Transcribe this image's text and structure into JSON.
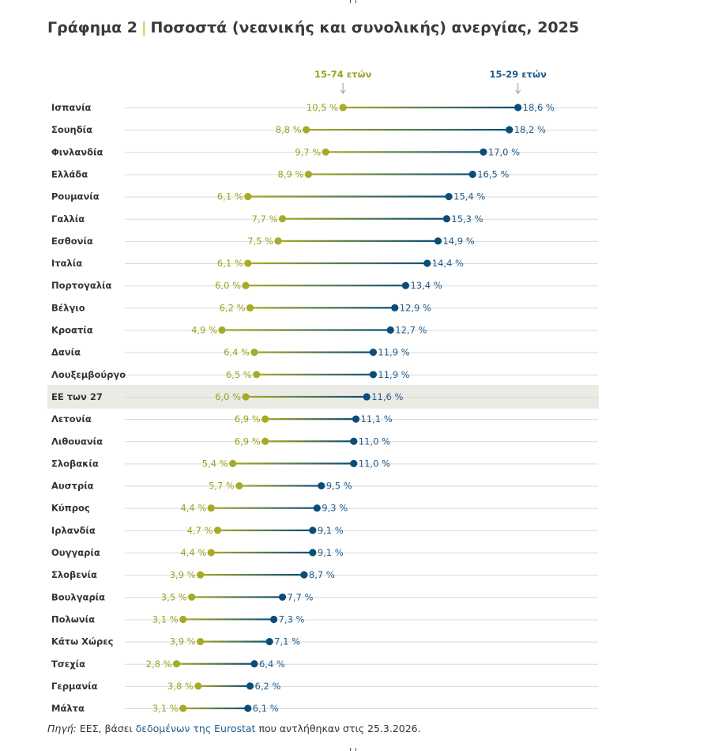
{
  "title": {
    "label": "Γράφημα 2",
    "separator": "|",
    "text": "Ποσοστά (νεανικής και συνολικής) ανεργίας, 2025"
  },
  "colors": {
    "total": "#a5ab25",
    "youth": "#0b4d79",
    "label_total": "#9aa320",
    "label_youth": "#1f5b8a",
    "highlight_bg": "#ebebe6",
    "row_line": "#d9d9d9"
  },
  "chart_data": {
    "type": "dumbbell",
    "title": "Ποσοστά (νεανικής και συνολικής) ανεργίας, 2025",
    "xlim": [
      0,
      20
    ],
    "series": [
      {
        "name": "15-74 ετών",
        "values": [
          10.5,
          8.8,
          9.7,
          8.9,
          6.1,
          7.7,
          7.5,
          6.1,
          6.0,
          6.2,
          4.9,
          6.4,
          6.5,
          6.0,
          6.9,
          6.9,
          5.4,
          5.7,
          4.4,
          4.7,
          4.4,
          3.9,
          3.5,
          3.1,
          3.9,
          2.8,
          3.8,
          3.1
        ]
      },
      {
        "name": "15-29 ετών",
        "values": [
          18.6,
          18.2,
          17.0,
          16.5,
          15.4,
          15.3,
          14.9,
          14.4,
          13.4,
          12.9,
          12.7,
          11.9,
          11.9,
          11.6,
          11.1,
          11.0,
          11.0,
          9.5,
          9.3,
          9.1,
          9.1,
          8.7,
          7.7,
          7.3,
          7.1,
          6.4,
          6.2,
          6.1
        ]
      }
    ],
    "categories": [
      "Ισπανία",
      "Σουηδία",
      "Φινλανδία",
      "Ελλάδα",
      "Ρουμανία",
      "Γαλλία",
      "Εσθονία",
      "Ιταλία",
      "Πορτογαλία",
      "Βέλγιο",
      "Κροατία",
      "Δανία",
      "Λουξεμβούργο",
      "ΕΕ των 27",
      "Λετονία",
      "Λιθουανία",
      "Σλοβακία",
      "Αυστρία",
      "Κύπρος",
      "Ιρλανδία",
      "Ουγγαρία",
      "Σλοβενία",
      "Βουλγαρία",
      "Πολωνία",
      "Κάτω Χώρες",
      "Τσεχία",
      "Γερμανία",
      "Μάλτα"
    ],
    "labels_total": [
      "10,5 %",
      "8,8 %",
      "9,7 %",
      "8,9 %",
      "6,1 %",
      "7,7 %",
      "7,5 %",
      "6,1 %",
      "6,0 %",
      "6,2 %",
      "4,9 %",
      "6,4 %",
      "6,5 %",
      "6,0 %",
      "6,9 %",
      "6,9 %",
      "5,4 %",
      "5,7 %",
      "4,4 %",
      "4,7 %",
      "4,4 %",
      "3,9 %",
      "3,5 %",
      "3,1 %",
      "3,9 %",
      "2,8 %",
      "3,8 %",
      "3,1 %"
    ],
    "labels_youth": [
      "18,6 %",
      "18,2 %",
      "17,0 %",
      "16,5 %",
      "15,4 %",
      "15,3 %",
      "14,9 %",
      "14,4 %",
      "13,4 %",
      "12,9 %",
      "12,7 %",
      "11,9 %",
      "11,9 %",
      "11,6 %",
      "11,1 %",
      "11,0 %",
      "11,0 %",
      "9,5 %",
      "9,3 %",
      "9,1 %",
      "9,1 %",
      "8,7 %",
      "7,7 %",
      "7,3 %",
      "7,1 %",
      "6,4 %",
      "6,2 %",
      "6,1 %"
    ],
    "highlight": "ΕΕ των 27",
    "legend_placement": "top, above first row at each series' dot",
    "grid": false
  },
  "source": {
    "prefix": "Πηγή:",
    "text1": " ΕΕΣ, βάσει ",
    "link": "δεδομένων της Eurostat",
    "text2": " που αντλήθηκαν στις 25.3.2026."
  }
}
